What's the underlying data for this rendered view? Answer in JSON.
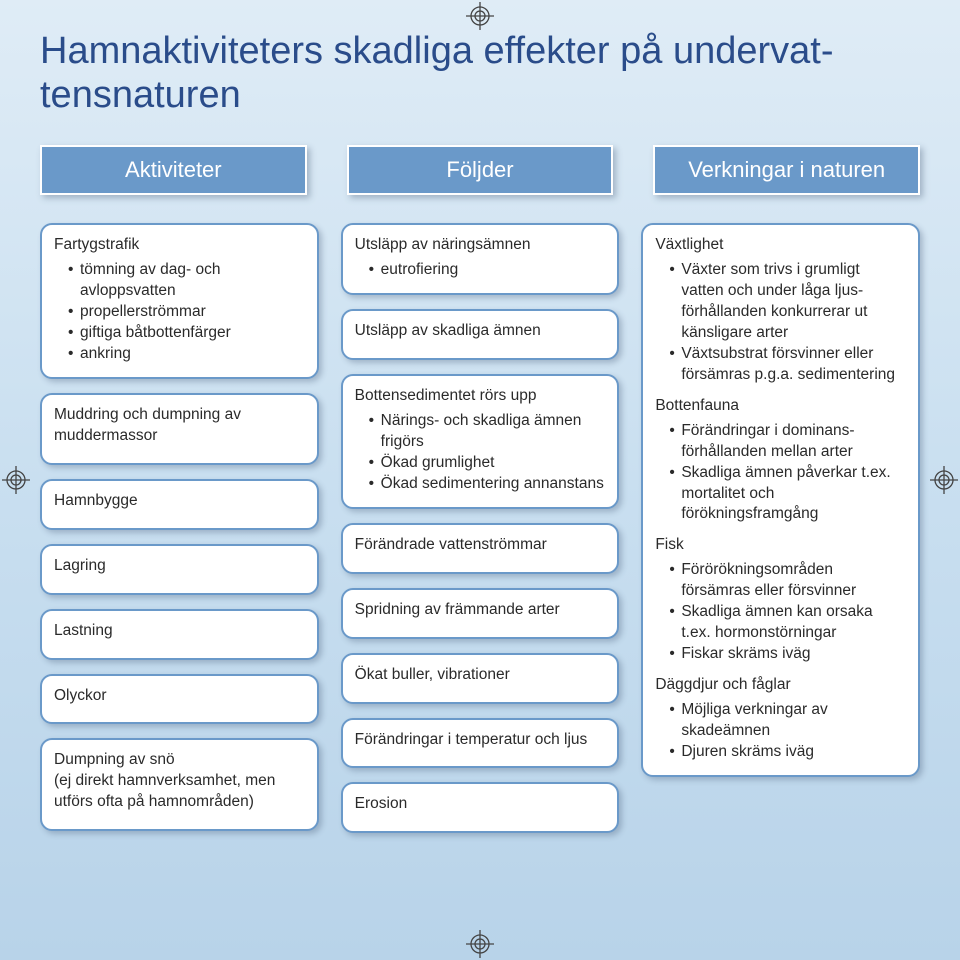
{
  "title": "Hamnaktiviteters skadliga effekter på undervat­tensnaturen",
  "headers": [
    "Aktiviteter",
    "Följder",
    "Verkningar i naturen"
  ],
  "reg_mark_color": "#444444",
  "columns": [
    {
      "cards": [
        {
          "title": "Fartygstrafik",
          "bullets": [
            "tömning av dag- och avloppsvatten",
            "propellerströmmar",
            "giftiga båtbottenfärger",
            "ankring"
          ]
        },
        {
          "title": "Muddring och dumpning av muddermassor",
          "bullets": []
        },
        {
          "title": "Hamnbygge",
          "bullets": []
        },
        {
          "title": "Lagring",
          "bullets": []
        },
        {
          "title": "Lastning",
          "bullets": []
        },
        {
          "title": "Olyckor",
          "bullets": []
        },
        {
          "title": "Dumpning av snö\n(ej direkt hamnverksamhet, men utförs ofta på hamnområden)",
          "bullets": []
        }
      ]
    },
    {
      "cards": [
        {
          "title": "Utsläpp av näringsämnen",
          "bullets": [
            "eutrofiering"
          ]
        },
        {
          "title": "Utsläpp av skadliga ämnen",
          "bullets": []
        },
        {
          "title": "Bottensedimentet rörs upp",
          "bullets": [
            "Närings- och skadliga ämnen frigörs",
            "Ökad grumlighet",
            "Ökad  sedimentering annanstans"
          ]
        },
        {
          "title": "Förändrade vattenströmmar",
          "bullets": []
        },
        {
          "title": "Spridning av främmande arter",
          "bullets": []
        },
        {
          "title": "Ökat buller, vibrationer",
          "bullets": []
        },
        {
          "title": "Förändringar i temperatur och ljus",
          "bullets": []
        },
        {
          "title": "Erosion",
          "bullets": []
        }
      ]
    },
    {
      "cards": [
        {
          "sections": [
            {
              "title": "Växtlighet",
              "bullets": [
                "Växter som trivs i grumligt vatten och under låga ljus­förhållanden konkurrerar ut känsligare arter",
                "Växtsubstrat försvinner eller försämras p.g.a. sedimentering"
              ]
            },
            {
              "title": "Bottenfauna",
              "bullets": [
                "Förändringar i dominans­förhållanden mellan arter",
                "Skadliga ämnen påverkar t.ex. mortalitet och förökningsframgång"
              ]
            },
            {
              "title": "Fisk",
              "bullets": [
                "Förörökningsområden försämras eller försvinner",
                "Skadliga ämnen kan orsaka t.ex. hormonstörningar",
                "Fiskar skräms iväg"
              ]
            },
            {
              "title": "Däggdjur och fåglar",
              "bullets": [
                "Möjliga verkningar av skadeämnen",
                "Djuren skräms iväg"
              ]
            }
          ]
        }
      ]
    }
  ]
}
